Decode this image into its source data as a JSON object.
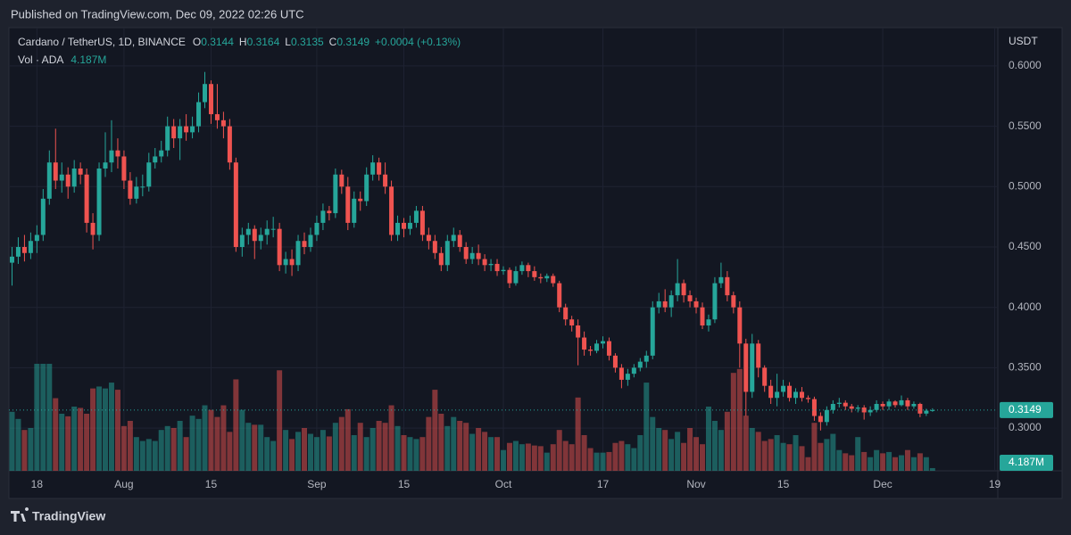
{
  "published": "Published on TradingView.com, Dec 09, 2022 02:26 UTC",
  "footer": "TradingView",
  "chart_data": {
    "type": "candlestick",
    "legend": {
      "symbol": "Cardano / TetherUS, 1D, BINANCE",
      "o": "O",
      "h": "H",
      "l": "L",
      "c": "C",
      "change": "+0.0004 (+0.13%)",
      "volume_label": "Vol · ADA",
      "volume_value": "4.187M"
    },
    "axis_label": "USDT",
    "up_color": "#26a69a",
    "down_color": "#ef5350",
    "open": [
      0.437,
      0.442,
      0.45,
      0.445,
      0.455,
      0.46,
      0.49,
      0.52,
      0.505,
      0.51,
      0.5,
      0.515,
      0.51,
      0.47,
      0.46,
      0.515,
      0.52,
      0.53,
      0.525,
      0.505,
      0.49,
      0.5,
      0.5,
      0.52,
      0.525,
      0.53,
      0.55,
      0.54,
      0.55,
      0.545,
      0.55,
      0.57,
      0.585,
      0.56,
      0.555,
      0.55,
      0.52,
      0.45,
      0.46,
      0.465,
      0.455,
      0.46,
      0.465,
      0.465,
      0.435,
      0.44,
      0.435,
      0.455,
      0.45,
      0.46,
      0.47,
      0.48,
      0.478,
      0.51,
      0.5,
      0.47,
      0.49,
      0.488,
      0.51,
      0.52,
      0.51,
      0.5,
      0.46,
      0.47,
      0.465,
      0.47,
      0.48,
      0.46,
      0.455,
      0.445,
      0.435,
      0.455,
      0.46,
      0.45,
      0.44,
      0.445,
      0.44,
      0.435,
      0.436,
      0.43,
      0.431,
      0.42,
      0.43,
      0.435,
      0.43,
      0.425,
      0.424,
      0.426,
      0.42,
      0.4,
      0.39,
      0.385,
      0.375,
      0.365,
      0.364,
      0.37,
      0.372,
      0.36,
      0.35,
      0.34,
      0.345,
      0.35,
      0.355,
      0.36,
      0.4,
      0.405,
      0.4,
      0.41,
      0.42,
      0.41,
      0.405,
      0.4,
      0.385,
      0.39,
      0.42,
      0.425,
      0.41,
      0.4,
      0.37,
      0.33,
      0.37,
      0.35,
      0.335,
      0.325,
      0.33,
      0.335,
      0.325,
      0.33,
      0.325,
      0.324,
      0.31,
      0.305,
      0.315,
      0.32,
      0.321,
      0.318,
      0.316,
      0.317,
      0.313,
      0.315,
      0.32,
      0.318,
      0.322,
      0.319,
      0.323,
      0.318,
      0.32,
      0.312,
      0.3144
    ],
    "high": [
      0.45,
      0.458,
      0.46,
      0.462,
      0.468,
      0.498,
      0.53,
      0.548,
      0.52,
      0.516,
      0.522,
      0.52,
      0.515,
      0.478,
      0.52,
      0.545,
      0.555,
      0.54,
      0.53,
      0.512,
      0.508,
      0.51,
      0.528,
      0.532,
      0.538,
      0.558,
      0.556,
      0.556,
      0.56,
      0.558,
      0.578,
      0.595,
      0.588,
      0.585,
      0.562,
      0.556,
      0.524,
      0.466,
      0.47,
      0.468,
      0.466,
      0.472,
      0.475,
      0.47,
      0.446,
      0.448,
      0.46,
      0.462,
      0.466,
      0.476,
      0.486,
      0.484,
      0.515,
      0.514,
      0.508,
      0.496,
      0.496,
      0.516,
      0.526,
      0.524,
      0.52,
      0.505,
      0.476,
      0.474,
      0.476,
      0.484,
      0.484,
      0.466,
      0.46,
      0.45,
      0.46,
      0.466,
      0.464,
      0.454,
      0.45,
      0.452,
      0.444,
      0.44,
      0.44,
      0.434,
      0.433,
      0.434,
      0.438,
      0.437,
      0.434,
      0.428,
      0.428,
      0.428,
      0.422,
      0.403,
      0.393,
      0.39,
      0.38,
      0.368,
      0.373,
      0.376,
      0.375,
      0.362,
      0.353,
      0.349,
      0.353,
      0.358,
      0.364,
      0.405,
      0.412,
      0.415,
      0.414,
      0.44,
      0.423,
      0.414,
      0.408,
      0.404,
      0.394,
      0.425,
      0.437,
      0.43,
      0.413,
      0.405,
      0.374,
      0.378,
      0.373,
      0.352,
      0.34,
      0.345,
      0.34,
      0.338,
      0.333,
      0.334,
      0.327,
      0.326,
      0.313,
      0.318,
      0.323,
      0.325,
      0.323,
      0.32,
      0.319,
      0.319,
      0.318,
      0.323,
      0.322,
      0.324,
      0.323,
      0.327,
      0.325,
      0.322,
      0.321,
      0.316,
      0.3164
    ],
    "low": [
      0.418,
      0.436,
      0.438,
      0.44,
      0.445,
      0.455,
      0.485,
      0.498,
      0.495,
      0.49,
      0.495,
      0.502,
      0.462,
      0.448,
      0.455,
      0.508,
      0.512,
      0.515,
      0.498,
      0.485,
      0.486,
      0.492,
      0.496,
      0.515,
      0.52,
      0.525,
      0.532,
      0.522,
      0.538,
      0.54,
      0.545,
      0.565,
      0.552,
      0.548,
      0.54,
      0.514,
      0.446,
      0.442,
      0.452,
      0.44,
      0.448,
      0.452,
      0.458,
      0.43,
      0.428,
      0.426,
      0.43,
      0.444,
      0.446,
      0.455,
      0.464,
      0.472,
      0.474,
      0.494,
      0.464,
      0.466,
      0.48,
      0.484,
      0.505,
      0.505,
      0.494,
      0.455,
      0.455,
      0.458,
      0.46,
      0.466,
      0.455,
      0.448,
      0.44,
      0.43,
      0.43,
      0.45,
      0.446,
      0.436,
      0.436,
      0.435,
      0.43,
      0.43,
      0.426,
      0.427,
      0.416,
      0.418,
      0.427,
      0.425,
      0.422,
      0.42,
      0.421,
      0.417,
      0.396,
      0.385,
      0.38,
      0.352,
      0.36,
      0.36,
      0.362,
      0.366,
      0.356,
      0.346,
      0.333,
      0.335,
      0.342,
      0.347,
      0.35,
      0.357,
      0.395,
      0.396,
      0.392,
      0.405,
      0.404,
      0.4,
      0.395,
      0.382,
      0.38,
      0.387,
      0.416,
      0.405,
      0.395,
      0.35,
      0.31,
      0.325,
      0.342,
      0.33,
      0.32,
      0.318,
      0.326,
      0.322,
      0.32,
      0.322,
      0.321,
      0.306,
      0.298,
      0.302,
      0.312,
      0.317,
      0.315,
      0.313,
      0.313,
      0.307,
      0.31,
      0.313,
      0.315,
      0.315,
      0.317,
      0.318,
      0.315,
      0.316,
      0.309,
      0.31,
      0.3135
    ],
    "close": [
      0.442,
      0.45,
      0.445,
      0.455,
      0.46,
      0.49,
      0.52,
      0.505,
      0.51,
      0.5,
      0.515,
      0.51,
      0.47,
      0.46,
      0.515,
      0.52,
      0.53,
      0.525,
      0.505,
      0.49,
      0.5,
      0.5,
      0.52,
      0.525,
      0.53,
      0.55,
      0.54,
      0.55,
      0.545,
      0.55,
      0.57,
      0.585,
      0.56,
      0.555,
      0.55,
      0.52,
      0.45,
      0.46,
      0.465,
      0.455,
      0.46,
      0.465,
      0.465,
      0.435,
      0.44,
      0.435,
      0.455,
      0.45,
      0.46,
      0.47,
      0.48,
      0.478,
      0.51,
      0.5,
      0.47,
      0.49,
      0.488,
      0.51,
      0.52,
      0.51,
      0.5,
      0.46,
      0.47,
      0.465,
      0.47,
      0.48,
      0.46,
      0.455,
      0.445,
      0.435,
      0.455,
      0.46,
      0.45,
      0.44,
      0.445,
      0.44,
      0.435,
      0.436,
      0.43,
      0.431,
      0.42,
      0.43,
      0.435,
      0.43,
      0.425,
      0.424,
      0.426,
      0.42,
      0.4,
      0.39,
      0.385,
      0.375,
      0.365,
      0.364,
      0.37,
      0.372,
      0.36,
      0.35,
      0.34,
      0.345,
      0.35,
      0.355,
      0.36,
      0.4,
      0.405,
      0.4,
      0.41,
      0.42,
      0.41,
      0.405,
      0.4,
      0.385,
      0.39,
      0.42,
      0.425,
      0.41,
      0.4,
      0.37,
      0.33,
      0.37,
      0.35,
      0.335,
      0.325,
      0.33,
      0.335,
      0.325,
      0.33,
      0.325,
      0.324,
      0.31,
      0.305,
      0.315,
      0.32,
      0.321,
      0.318,
      0.316,
      0.317,
      0.313,
      0.315,
      0.32,
      0.318,
      0.322,
      0.319,
      0.323,
      0.318,
      0.32,
      0.312,
      0.3144,
      0.3149
    ],
    "volume": [
      91,
      80,
      63,
      66,
      165,
      165,
      165,
      112,
      88,
      84,
      99,
      97,
      88,
      127,
      130,
      127,
      136,
      125,
      69,
      77,
      52,
      46,
      49,
      46,
      63,
      69,
      66,
      77,
      52,
      85,
      80,
      101,
      94,
      83,
      101,
      60,
      141,
      94,
      74,
      71,
      71,
      52,
      46,
      155,
      63,
      49,
      60,
      66,
      57,
      52,
      63,
      53,
      74,
      83,
      95,
      55,
      74,
      52,
      66,
      77,
      74,
      101,
      69,
      55,
      52,
      49,
      52,
      83,
      125,
      88,
      69,
      83,
      77,
      74,
      57,
      66,
      60,
      52,
      52,
      32,
      43,
      46,
      41,
      42,
      39,
      38,
      28,
      41,
      63,
      46,
      41,
      113,
      55,
      35,
      28,
      28,
      29,
      43,
      46,
      41,
      35,
      55,
      136,
      83,
      66,
      63,
      49,
      60,
      43,
      66,
      52,
      41,
      99,
      77,
      63,
      91,
      151,
      157,
      85,
      66,
      60,
      46,
      49,
      55,
      43,
      41,
      55,
      38,
      21,
      74,
      43,
      49,
      57,
      32,
      27,
      24,
      52,
      29,
      21,
      32,
      27,
      29,
      21,
      24,
      32,
      21,
      27,
      21,
      4.187
    ],
    "xlim": [
      -0.5,
      158.5
    ],
    "xticks": [
      {
        "value": 4,
        "label": "18"
      },
      {
        "value": 18,
        "label": "Aug"
      },
      {
        "value": 32,
        "label": "15"
      },
      {
        "value": 49,
        "label": "Sep"
      },
      {
        "value": 63,
        "label": "15"
      },
      {
        "value": 79,
        "label": "Oct"
      },
      {
        "value": 95,
        "label": "17"
      },
      {
        "value": 110,
        "label": "Nov"
      },
      {
        "value": 124,
        "label": "15"
      },
      {
        "value": 140,
        "label": "Dec"
      },
      {
        "value": 158,
        "label": "19"
      }
    ],
    "ylim": [
      0.2646,
      0.6317
    ],
    "yticks": [
      {
        "value": 0.3,
        "label": "0.3000"
      },
      {
        "value": 0.35,
        "label": "0.3500"
      },
      {
        "value": 0.4,
        "label": "0.4000"
      },
      {
        "value": 0.45,
        "label": "0.4500"
      },
      {
        "value": 0.5,
        "label": "0.5000"
      },
      {
        "value": 0.55,
        "label": "0.5500"
      },
      {
        "value": 0.6,
        "label": "0.6000"
      }
    ],
    "grid": true
  }
}
